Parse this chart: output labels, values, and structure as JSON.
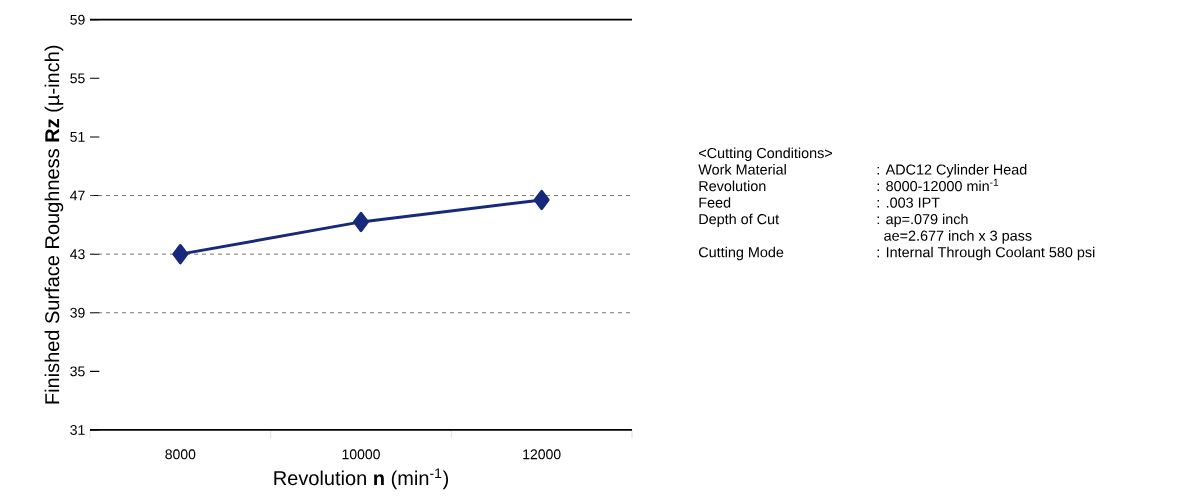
{
  "chart_data": {
    "type": "line",
    "xlabel": "Revolution **n** (min$^{-1}$)",
    "ylabel": "Finished Surface Roughness **Rz** (µ-inch)",
    "categories": [
      "8000",
      "10000",
      "12000"
    ],
    "series": [
      {
        "color": "#17297a",
        "values": [
          43.0,
          45.2,
          46.7
        ]
      }
    ],
    "ylim": [
      31,
      59
    ],
    "yticks": [
      31,
      35,
      39,
      43,
      47,
      51,
      55,
      59
    ],
    "marker": "diamond",
    "line_style": "solid",
    "ref_lines": [
      {
        "axis": "y",
        "value": 39,
        "color": "#555555",
        "line_style": "dashed"
      },
      {
        "axis": "y",
        "value": 43,
        "color": "#555555",
        "line_style": "dashed"
      },
      {
        "axis": "y",
        "value": 47,
        "color": "#555555",
        "line_style": "dashed"
      }
    ],
    "annotations": [
      "<Cutting Conditions>",
      "Work Material",
      ": ADC12 Cylinder Head",
      "Revolution",
      ": 8000-12000 min$^{-1}$",
      "Feed",
      ": .003 IPT",
      "Depth of Cut",
      ": ap=.079 inch",
      "ae=2.677 inch x 3 pass",
      "Cutting Mode",
      ": Internal Through Coolant 580 psi"
    ]
  }
}
